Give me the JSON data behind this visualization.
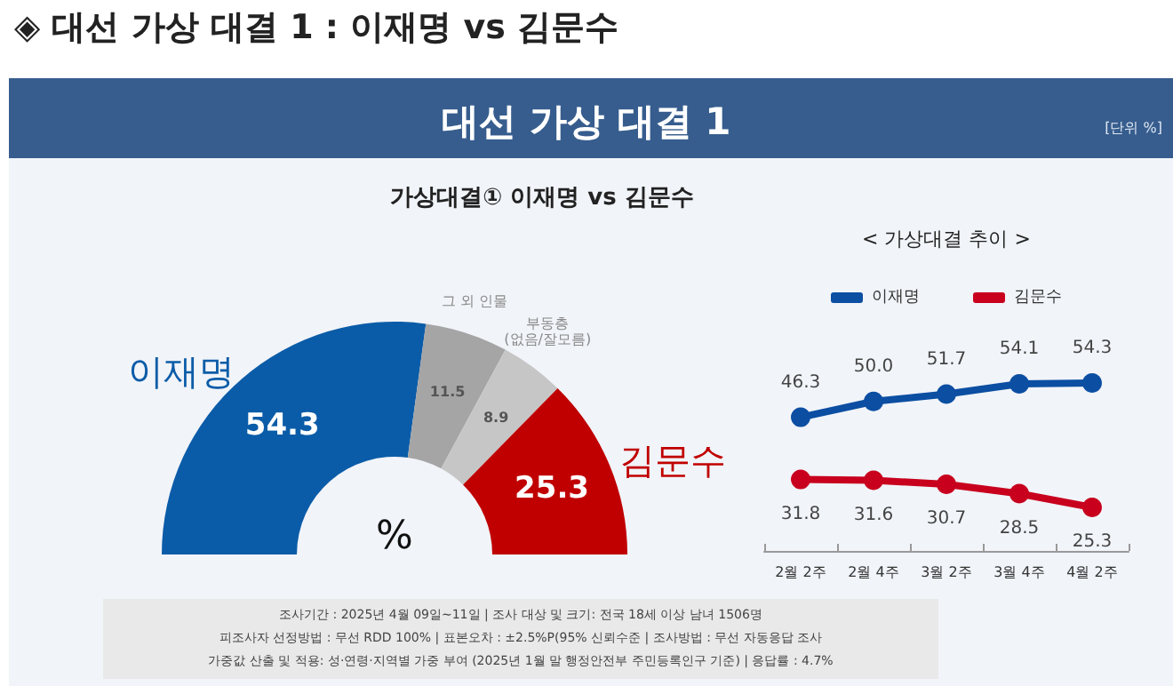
{
  "chart_data": [
    {
      "type": "donut",
      "title": "대선 가상 대결 1",
      "subtitle": "가상대결① 이재명 vs 김문수",
      "categories": [
        "이재명",
        "그 외 인물",
        "부동층\n(없음/잘모름)",
        "김문수"
      ],
      "values": [
        54.3,
        11.5,
        8.9,
        25.3
      ],
      "colors": [
        "#0b5ca8",
        "#a5a5a5",
        "#c6c6c6",
        "#c00000"
      ],
      "value_labels": [
        "54.3",
        "11.5",
        "8.9",
        "25.3"
      ],
      "annotations": [
        "◈ 대선 가상 대결 1 : 이재명 vs 김문수",
        "[단위 %]",
        "%",
        "조사기간 : 2025년 4월 09일~11일 | 조사 대상 및 크기: 전국 18세 이상 남녀 1506명",
        "피조사자 선정방법 : 무선 RDD 100% | 표본오차 : ±2.5%P(95% 신뢰수준 | 조사방법 : 무선 자동응답 조사",
        "가중값 산출 및 적용: 성·연령·지역별 가중 부여 (2025년 1월 말 행정안전부 주민등록인구 기준) | 응답률 : 4.7%"
      ]
    },
    {
      "type": "line",
      "title": "< 가상대결 추이 >",
      "categories": [
        "2월 2주",
        "2월 4주",
        "3월 2주",
        "3월 4주",
        "4월 2주"
      ],
      "series": [
        {
          "name": "이재명",
          "color": "#0b4ea2",
          "values": [
            46.3,
            50.0,
            51.7,
            54.1,
            54.3
          ],
          "value_labels": [
            "46.3",
            "50.0",
            "51.7",
            "54.1",
            "54.3"
          ]
        },
        {
          "name": "김문수",
          "color": "#c8001e",
          "values": [
            31.8,
            31.6,
            30.7,
            28.5,
            25.3
          ],
          "value_labels": [
            "31.8",
            "31.6",
            "30.7",
            "28.5",
            "25.3"
          ]
        }
      ],
      "legend": "top",
      "marker": "circle",
      "line_style": "solid",
      "grid": false
    }
  ]
}
